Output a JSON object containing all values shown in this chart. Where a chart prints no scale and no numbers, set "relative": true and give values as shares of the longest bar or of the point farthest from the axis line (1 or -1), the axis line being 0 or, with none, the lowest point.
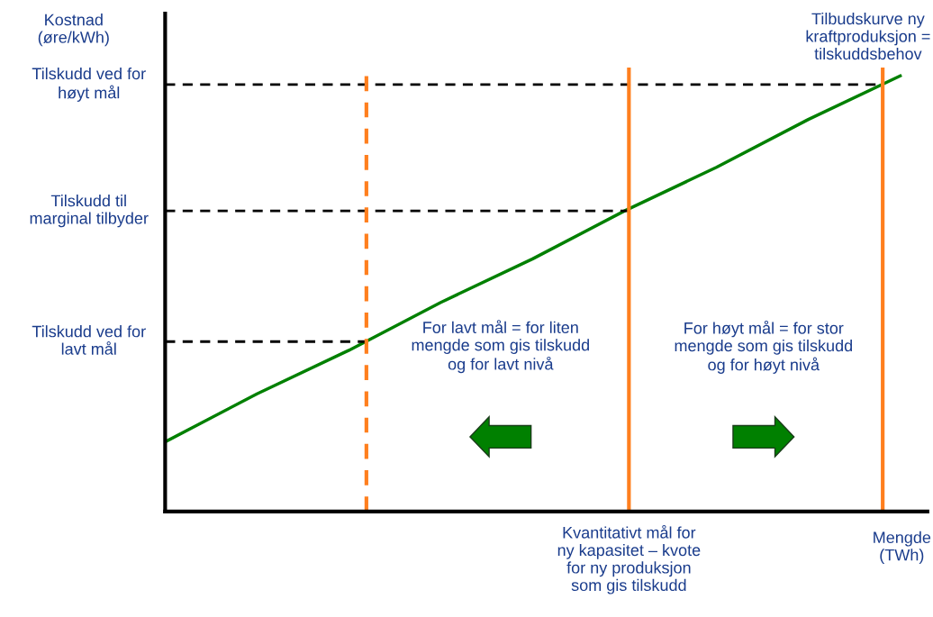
{
  "chart_data": {
    "type": "line",
    "relative": true,
    "ylabel": "Kostnad\n(øre/kWh)",
    "xlabel": "Mengde\n(TWh)",
    "categories": [
      null,
      null,
      null,
      null,
      null,
      null,
      null,
      null,
      null
    ],
    "series": [
      {
        "name": "Tilbudskurve ny\nkraftproduksjon =\ntilskuddsbehov",
        "color": "#008000",
        "values": [
          0.16,
          0.27,
          0.37,
          0.48,
          0.58,
          0.69,
          0.79,
          0.9,
          1.0
        ]
      }
    ],
    "ref_lines": [
      {
        "axis": "y",
        "value": 0.98,
        "label": "Tilskudd ved for\nhøyt mål",
        "color": "#000000",
        "line_style": "dashed"
      },
      {
        "axis": "y",
        "value": 0.69,
        "label": "Tilskudd til\nmarginal tilbyder",
        "color": "#000000",
        "line_style": "dashed"
      },
      {
        "axis": "y",
        "value": 0.39,
        "label": "Tilskudd ved for\nlavt mål",
        "color": "#000000",
        "line_style": "dashed"
      }
    ],
    "annotations": [
      "For lavt mål = for liten\nmengde som gis tilskudd\nog for lavt nivå",
      "For høyt mål = for stor\nmengde som gis tilskudd\nog for høyt nivå",
      "Kvantitativt mål for\nny kapasitet – kvote\nfor ny produksjon\nsom gis tilskudd"
    ],
    "grid": false,
    "legend": false,
    "marker": "none",
    "line_style": "solid"
  }
}
